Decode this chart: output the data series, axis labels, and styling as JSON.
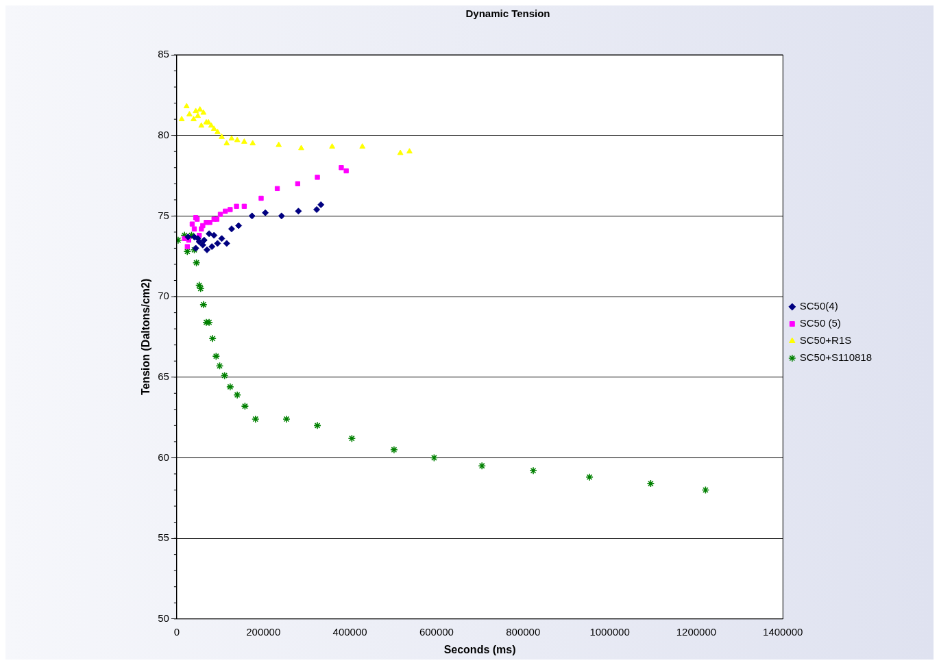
{
  "chart_data": {
    "type": "scatter",
    "title": "Dynamic Tension",
    "xlabel": "Seconds (ms)",
    "ylabel": "Tension (Daltons/cm2)",
    "xlim": [
      0,
      1400000
    ],
    "xticks": [
      0,
      {
        "value": 200000,
        "label": "200000"
      },
      {
        "value": 400000,
        "label": "400000"
      },
      {
        "value": 600000,
        "label": "600000"
      },
      {
        "value": 800000,
        "label": "800000"
      },
      {
        "value": 1000000,
        "label": "1000000"
      },
      {
        "value": 1200000,
        "label": "1200000"
      },
      {
        "value": 1400000,
        "label": "1400000"
      }
    ],
    "ylim": [
      50,
      85
    ],
    "yticks": [
      50,
      55,
      60,
      65,
      70,
      75,
      80,
      85
    ],
    "grid": "y",
    "legend": "right",
    "series": [
      {
        "name": "SC50(4)",
        "color": "#000080",
        "marker": "diamond",
        "x": [
          26000,
          40600,
          43900,
          48700,
          52000,
          60100,
          63300,
          69800,
          74700,
          81200,
          86100,
          94200,
          103900,
          115300,
          126700,
          142900,
          173800,
          204600,
          242000,
          281000,
          323200,
          332900
        ],
        "values": [
          73.7,
          73.7,
          73.0,
          73.6,
          73.4,
          73.2,
          73.5,
          72.9,
          73.9,
          73.1,
          73.8,
          73.3,
          73.6,
          73.3,
          74.2,
          74.4,
          75.0,
          75.2,
          75.0,
          75.3,
          75.4,
          75.7
        ]
      },
      {
        "name": "SC50 (5)",
        "color": "#ff00ff",
        "marker": "square",
        "x": [
          17900,
          24400,
          27600,
          35700,
          40600,
          43900,
          47100,
          52000,
          56800,
          60100,
          68200,
          76300,
          86100,
          92600,
          100700,
          112100,
          123400,
          138000,
          155900,
          194900,
          232200,
          279300,
          324800,
          380000,
          391400
        ],
        "values": [
          73.6,
          73.1,
          73.5,
          74.5,
          74.2,
          74.9,
          74.8,
          73.8,
          74.2,
          74.4,
          74.6,
          74.6,
          74.8,
          74.8,
          75.1,
          75.3,
          75.4,
          75.6,
          75.6,
          76.1,
          76.7,
          77.0,
          77.4,
          78.0,
          77.8
        ]
      },
      {
        "name": "SC50+R1S",
        "color": "#ffff00",
        "marker": "triangle",
        "x": [
          11400,
          22700,
          29200,
          39000,
          43900,
          48700,
          53600,
          56800,
          61700,
          68200,
          73100,
          79600,
          86000,
          94200,
          103900,
          115300,
          126700,
          139700,
          155900,
          175400,
          235500,
          287500,
          358900,
          428700,
          516400,
          537500
        ],
        "values": [
          81.0,
          81.8,
          81.3,
          81.0,
          81.5,
          81.2,
          81.6,
          80.6,
          81.4,
          80.8,
          80.8,
          80.6,
          80.4,
          80.2,
          79.9,
          79.5,
          79.8,
          79.7,
          79.6,
          79.5,
          79.4,
          79.2,
          79.3,
          79.3,
          78.9,
          79.0
        ]
      },
      {
        "name": "SC50+S110818",
        "color": "#008000",
        "marker": "cross",
        "x": [
          3200,
          17900,
          24400,
          34100,
          40600,
          45500,
          52000,
          55200,
          61700,
          68200,
          74700,
          82800,
          90900,
          99100,
          110400,
          123400,
          139700,
          157500,
          181900,
          253400,
          324800,
          404400,
          501800,
          594400,
          704900,
          823400,
          953300,
          1094600,
          1221300
        ],
        "values": [
          73.5,
          73.8,
          72.8,
          73.8,
          72.9,
          72.1,
          70.7,
          70.5,
          69.5,
          68.4,
          68.4,
          67.4,
          66.3,
          65.7,
          65.1,
          64.4,
          63.9,
          63.2,
          62.4,
          62.4,
          62.0,
          61.2,
          60.5,
          60.0,
          59.5,
          59.2,
          58.8,
          58.4,
          58.0
        ]
      }
    ]
  }
}
